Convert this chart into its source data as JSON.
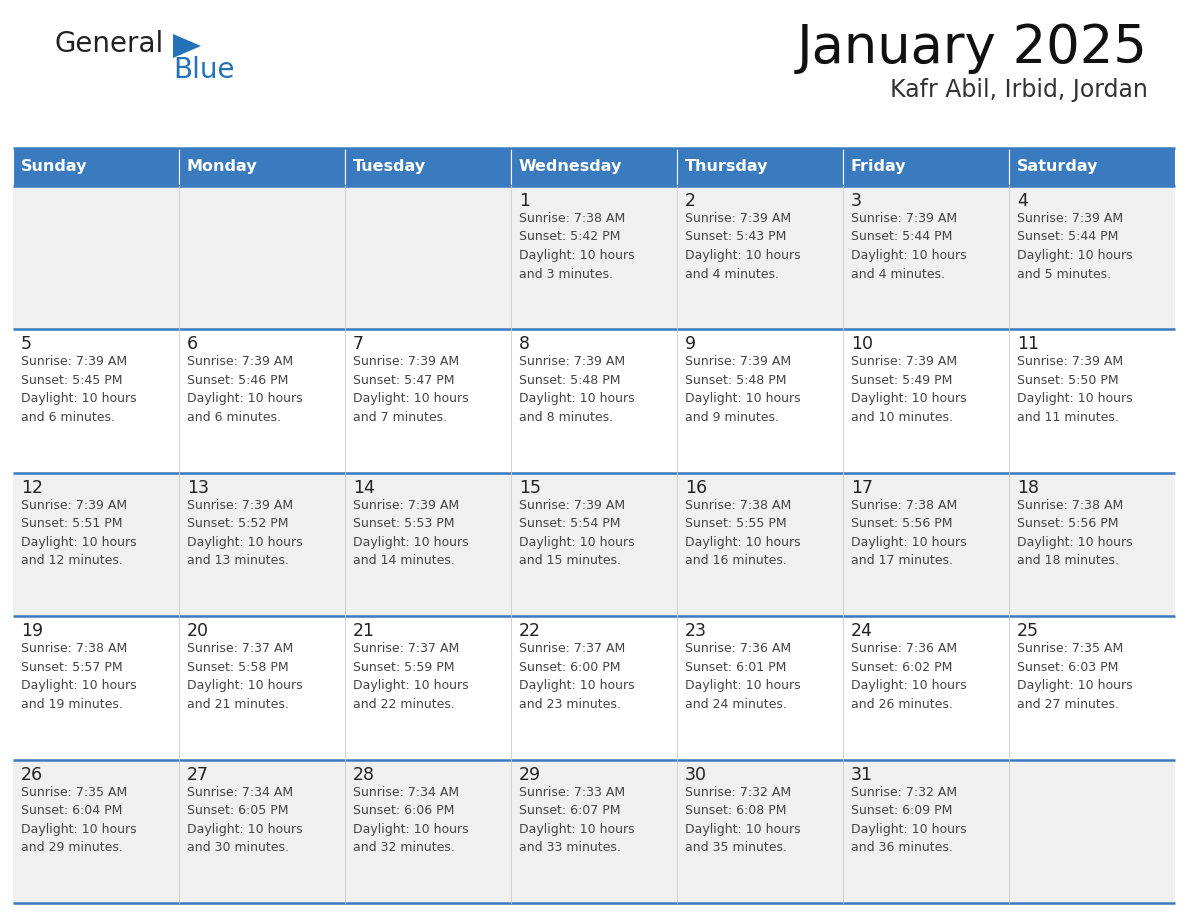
{
  "title": "January 2025",
  "subtitle": "Kafr Abil, Irbid, Jordan",
  "header_color": "#3a7abf",
  "header_text_color": "#ffffff",
  "day_names": [
    "Sunday",
    "Monday",
    "Tuesday",
    "Wednesday",
    "Thursday",
    "Friday",
    "Saturday"
  ],
  "row_bg_even": "#f0f0f0",
  "row_bg_odd": "#ffffff",
  "cell_border_color": "#3a7abf",
  "logo_general_color": "#222222",
  "logo_blue_color": "#2472b8",
  "logo_triangle_color": "#2472b8",
  "title_color": "#111111",
  "subtitle_color": "#333333",
  "date_num_color": "#222222",
  "info_text_color": "#444444",
  "calendar": [
    [
      {
        "day": "",
        "info": ""
      },
      {
        "day": "",
        "info": ""
      },
      {
        "day": "",
        "info": ""
      },
      {
        "day": "1",
        "info": "Sunrise: 7:38 AM\nSunset: 5:42 PM\nDaylight: 10 hours\nand 3 minutes."
      },
      {
        "day": "2",
        "info": "Sunrise: 7:39 AM\nSunset: 5:43 PM\nDaylight: 10 hours\nand 4 minutes."
      },
      {
        "day": "3",
        "info": "Sunrise: 7:39 AM\nSunset: 5:44 PM\nDaylight: 10 hours\nand 4 minutes."
      },
      {
        "day": "4",
        "info": "Sunrise: 7:39 AM\nSunset: 5:44 PM\nDaylight: 10 hours\nand 5 minutes."
      }
    ],
    [
      {
        "day": "5",
        "info": "Sunrise: 7:39 AM\nSunset: 5:45 PM\nDaylight: 10 hours\nand 6 minutes."
      },
      {
        "day": "6",
        "info": "Sunrise: 7:39 AM\nSunset: 5:46 PM\nDaylight: 10 hours\nand 6 minutes."
      },
      {
        "day": "7",
        "info": "Sunrise: 7:39 AM\nSunset: 5:47 PM\nDaylight: 10 hours\nand 7 minutes."
      },
      {
        "day": "8",
        "info": "Sunrise: 7:39 AM\nSunset: 5:48 PM\nDaylight: 10 hours\nand 8 minutes."
      },
      {
        "day": "9",
        "info": "Sunrise: 7:39 AM\nSunset: 5:48 PM\nDaylight: 10 hours\nand 9 minutes."
      },
      {
        "day": "10",
        "info": "Sunrise: 7:39 AM\nSunset: 5:49 PM\nDaylight: 10 hours\nand 10 minutes."
      },
      {
        "day": "11",
        "info": "Sunrise: 7:39 AM\nSunset: 5:50 PM\nDaylight: 10 hours\nand 11 minutes."
      }
    ],
    [
      {
        "day": "12",
        "info": "Sunrise: 7:39 AM\nSunset: 5:51 PM\nDaylight: 10 hours\nand 12 minutes."
      },
      {
        "day": "13",
        "info": "Sunrise: 7:39 AM\nSunset: 5:52 PM\nDaylight: 10 hours\nand 13 minutes."
      },
      {
        "day": "14",
        "info": "Sunrise: 7:39 AM\nSunset: 5:53 PM\nDaylight: 10 hours\nand 14 minutes."
      },
      {
        "day": "15",
        "info": "Sunrise: 7:39 AM\nSunset: 5:54 PM\nDaylight: 10 hours\nand 15 minutes."
      },
      {
        "day": "16",
        "info": "Sunrise: 7:38 AM\nSunset: 5:55 PM\nDaylight: 10 hours\nand 16 minutes."
      },
      {
        "day": "17",
        "info": "Sunrise: 7:38 AM\nSunset: 5:56 PM\nDaylight: 10 hours\nand 17 minutes."
      },
      {
        "day": "18",
        "info": "Sunrise: 7:38 AM\nSunset: 5:56 PM\nDaylight: 10 hours\nand 18 minutes."
      }
    ],
    [
      {
        "day": "19",
        "info": "Sunrise: 7:38 AM\nSunset: 5:57 PM\nDaylight: 10 hours\nand 19 minutes."
      },
      {
        "day": "20",
        "info": "Sunrise: 7:37 AM\nSunset: 5:58 PM\nDaylight: 10 hours\nand 21 minutes."
      },
      {
        "day": "21",
        "info": "Sunrise: 7:37 AM\nSunset: 5:59 PM\nDaylight: 10 hours\nand 22 minutes."
      },
      {
        "day": "22",
        "info": "Sunrise: 7:37 AM\nSunset: 6:00 PM\nDaylight: 10 hours\nand 23 minutes."
      },
      {
        "day": "23",
        "info": "Sunrise: 7:36 AM\nSunset: 6:01 PM\nDaylight: 10 hours\nand 24 minutes."
      },
      {
        "day": "24",
        "info": "Sunrise: 7:36 AM\nSunset: 6:02 PM\nDaylight: 10 hours\nand 26 minutes."
      },
      {
        "day": "25",
        "info": "Sunrise: 7:35 AM\nSunset: 6:03 PM\nDaylight: 10 hours\nand 27 minutes."
      }
    ],
    [
      {
        "day": "26",
        "info": "Sunrise: 7:35 AM\nSunset: 6:04 PM\nDaylight: 10 hours\nand 29 minutes."
      },
      {
        "day": "27",
        "info": "Sunrise: 7:34 AM\nSunset: 6:05 PM\nDaylight: 10 hours\nand 30 minutes."
      },
      {
        "day": "28",
        "info": "Sunrise: 7:34 AM\nSunset: 6:06 PM\nDaylight: 10 hours\nand 32 minutes."
      },
      {
        "day": "29",
        "info": "Sunrise: 7:33 AM\nSunset: 6:07 PM\nDaylight: 10 hours\nand 33 minutes."
      },
      {
        "day": "30",
        "info": "Sunrise: 7:32 AM\nSunset: 6:08 PM\nDaylight: 10 hours\nand 35 minutes."
      },
      {
        "day": "31",
        "info": "Sunrise: 7:32 AM\nSunset: 6:09 PM\nDaylight: 10 hours\nand 36 minutes."
      },
      {
        "day": "",
        "info": ""
      }
    ]
  ]
}
